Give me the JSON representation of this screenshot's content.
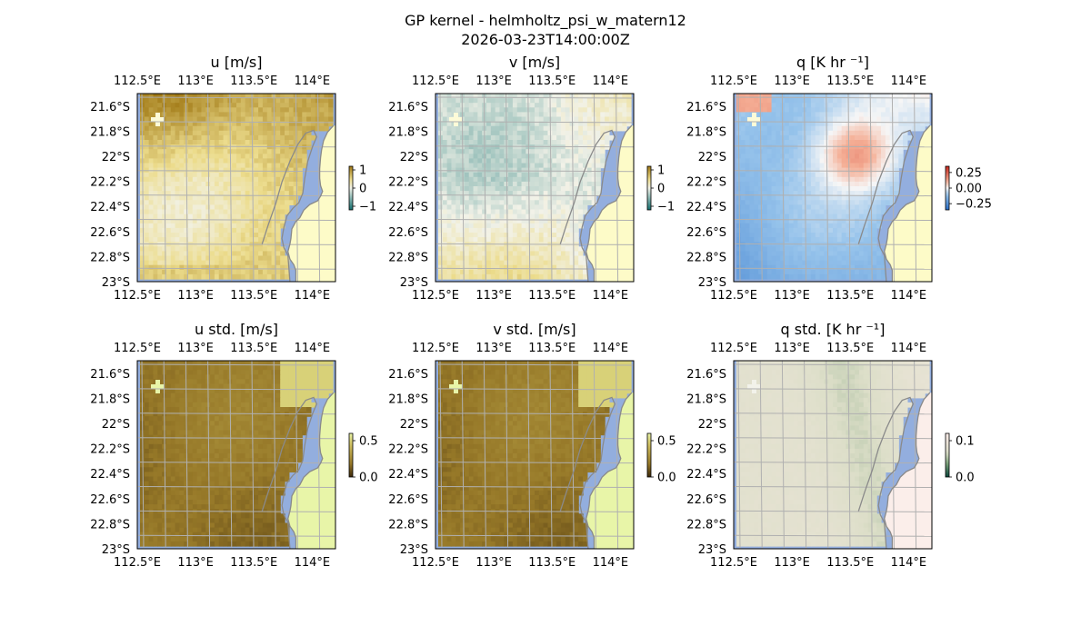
{
  "figure": {
    "title": "GP kernel - helmholtz_psi_w_matern12",
    "subtitle": "2026-03-23T14:00:00Z"
  },
  "colors": {
    "ocean_fill": "#93aede",
    "coastline": "#8a8a8a",
    "gridline": "#b0b0b0",
    "land_fill_mean": "#fdfbc8",
    "land_fill_std_uv": "#e8f5a8",
    "land_fill_std_q": "#fbeeea"
  },
  "chart_data": [
    {
      "id": "u",
      "type": "heatmap",
      "title": "u [m/s]",
      "lon_ticks": [
        112.5,
        113,
        113.5,
        114
      ],
      "lat_ticks": [
        -21.6,
        -21.8,
        -22,
        -22.2,
        -22.4,
        -22.6,
        -22.8,
        -23
      ],
      "lon_tick_labels": [
        "112.5°E",
        "113°E",
        "113.5°E",
        "114°E"
      ],
      "lat_tick_labels": [
        "21.6°S",
        "21.8°S",
        "22°S",
        "22.2°S",
        "22.4°S",
        "22.6°S",
        "22.8°S",
        "23°S"
      ],
      "lon_range": [
        112.5,
        114.2
      ],
      "lat_range": [
        -23,
        -21.5
      ],
      "colorbar": {
        "ticks": [
          1,
          0,
          -1
        ],
        "labels": [
          "1",
          "0",
          "−1"
        ],
        "range": [
          -1.2,
          1.2
        ],
        "colormap": "teal-white-yellow"
      },
      "field": "u",
      "grid": true
    },
    {
      "id": "v",
      "type": "heatmap",
      "title": "v [m/s]",
      "lon_ticks": [
        112.5,
        113,
        113.5,
        114
      ],
      "lat_ticks": [
        -21.6,
        -21.8,
        -22,
        -22.2,
        -22.4,
        -22.6,
        -22.8,
        -23
      ],
      "lon_tick_labels": [
        "112.5°E",
        "113°E",
        "113.5°E",
        "114°E"
      ],
      "lat_tick_labels": [
        "21.6°S",
        "21.8°S",
        "22°S",
        "22.2°S",
        "22.4°S",
        "22.6°S",
        "22.8°S",
        "23°S"
      ],
      "lon_range": [
        112.5,
        114.2
      ],
      "lat_range": [
        -23,
        -21.5
      ],
      "colorbar": {
        "ticks": [
          1,
          0,
          -1
        ],
        "labels": [
          "1",
          "0",
          "−1"
        ],
        "range": [
          -1.2,
          1.2
        ],
        "colormap": "teal-white-yellow"
      },
      "field": "v",
      "grid": true
    },
    {
      "id": "q",
      "type": "heatmap",
      "title": "q [K hr ⁻¹]",
      "lon_ticks": [
        112.5,
        113,
        113.5,
        114
      ],
      "lat_ticks": [
        -21.6,
        -21.8,
        -22,
        -22.2,
        -22.4,
        -22.6,
        -22.8,
        -23
      ],
      "lon_tick_labels": [
        "112.5°E",
        "113°E",
        "113.5°E",
        "114°E"
      ],
      "lat_tick_labels": [
        "21.6°S",
        "21.8°S",
        "22°S",
        "22.2°S",
        "22.4°S",
        "22.6°S",
        "22.8°S",
        "23°S"
      ],
      "lon_range": [
        112.5,
        114.2
      ],
      "lat_range": [
        -23,
        -21.5
      ],
      "colorbar": {
        "ticks": [
          0.25,
          0,
          -0.25
        ],
        "labels": [
          "0.25",
          "0.00",
          "−0.25"
        ],
        "range": [
          -0.35,
          0.35
        ],
        "colormap": "blue-white-red"
      },
      "field": "q",
      "grid": true
    },
    {
      "id": "u_std",
      "type": "heatmap",
      "title": "u std. [m/s]",
      "lon_ticks": [
        112.5,
        113,
        113.5,
        114
      ],
      "lat_ticks": [
        -21.6,
        -21.8,
        -22,
        -22.2,
        -22.4,
        -22.6,
        -22.8,
        -23
      ],
      "lon_tick_labels": [
        "112.5°E",
        "113°E",
        "113.5°E",
        "114°E"
      ],
      "lat_tick_labels": [
        "21.6°S",
        "21.8°S",
        "22°S",
        "22.2°S",
        "22.4°S",
        "22.6°S",
        "22.8°S",
        "23°S"
      ],
      "lon_range": [
        112.5,
        114.2
      ],
      "lat_range": [
        -23,
        -21.5
      ],
      "colorbar": {
        "ticks": [
          0.5,
          0
        ],
        "labels": [
          "0.5",
          "0.0"
        ],
        "range": [
          0,
          0.6
        ],
        "colormap": "olive-yellow"
      },
      "field": "u_std",
      "grid": true
    },
    {
      "id": "v_std",
      "type": "heatmap",
      "title": "v std. [m/s]",
      "lon_ticks": [
        112.5,
        113,
        113.5,
        114
      ],
      "lat_ticks": [
        -21.6,
        -21.8,
        -22,
        -22.2,
        -22.4,
        -22.6,
        -22.8,
        -23
      ],
      "lon_tick_labels": [
        "112.5°E",
        "113°E",
        "113.5°E",
        "114°E"
      ],
      "lat_tick_labels": [
        "21.6°S",
        "21.8°S",
        "22°S",
        "22.2°S",
        "22.4°S",
        "22.6°S",
        "22.8°S",
        "23°S"
      ],
      "lon_range": [
        112.5,
        114.2
      ],
      "lat_range": [
        -23,
        -21.5
      ],
      "colorbar": {
        "ticks": [
          0.5,
          0
        ],
        "labels": [
          "0.5",
          "0.0"
        ],
        "range": [
          0,
          0.6
        ],
        "colormap": "olive-yellow"
      },
      "field": "v_std",
      "grid": true
    },
    {
      "id": "q_std",
      "type": "heatmap",
      "title": "q std. [K hr ⁻¹]",
      "lon_ticks": [
        112.5,
        113,
        113.5,
        114
      ],
      "lat_ticks": [
        -21.6,
        -21.8,
        -22,
        -22.2,
        -22.4,
        -22.6,
        -22.8,
        -23
      ],
      "lon_tick_labels": [
        "112.5°E",
        "113°E",
        "113.5°E",
        "114°E"
      ],
      "lat_tick_labels": [
        "21.6°S",
        "21.8°S",
        "22°S",
        "22.2°S",
        "22.4°S",
        "22.6°S",
        "22.8°S",
        "23°S"
      ],
      "lon_range": [
        112.5,
        114.2
      ],
      "lat_range": [
        -23,
        -21.5
      ],
      "colorbar": {
        "ticks": [
          0.1,
          0
        ],
        "labels": [
          "0.1",
          "0.0"
        ],
        "range": [
          0,
          0.12
        ],
        "colormap": "green-pink"
      },
      "field": "q_std",
      "grid": true
    }
  ]
}
